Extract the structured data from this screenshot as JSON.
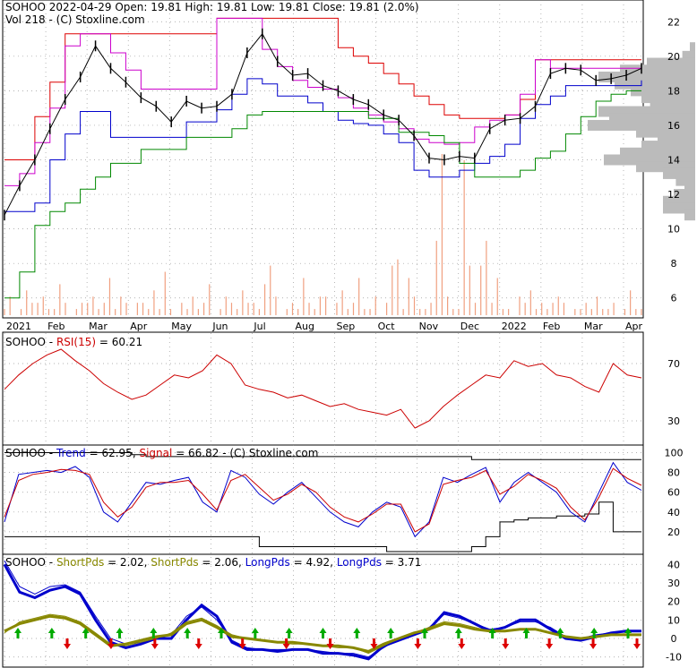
{
  "header": {
    "line1": "SOHOO  2022-04-29 Open: 19.81  High: 19.81  Low: 19.81  Close: 19.81 (2.0%)",
    "line2": "Vol 218   - (C) Stoxline.com"
  },
  "colors": {
    "price": "#000000",
    "upper_band": "#dd0000",
    "mid_band": "#cc00cc",
    "lower_band": "#0000cc",
    "low_band": "#008800",
    "volume": "#f0a080",
    "volume_profile": "#bbbbbb",
    "rsi": "#cc0000",
    "trend": "#0000cc",
    "signal": "#cc0000",
    "short_pds": "#888800",
    "long_pds": "#0000cc",
    "buy_arrow": "#00aa00",
    "sell_arrow": "#dd0000",
    "grid": "#999999"
  },
  "chart_data": [
    {
      "id": "price",
      "type": "line",
      "title": "SOHOO  2022-04-29 Open: 19.81  High: 19.81  Low: 19.81  Close: 19.81 (2.0%)",
      "y_ticks": [
        "22",
        "20",
        "18",
        "16",
        "14",
        "12",
        "10",
        "8",
        "6"
      ],
      "ylim": [
        5,
        23
      ],
      "x_ticks": [
        "2021",
        "Feb",
        "Mar",
        "Apr",
        "May",
        "Jun",
        "Jul",
        "Aug",
        "Sep",
        "Oct",
        "Nov",
        "Dec",
        "2022",
        "Feb",
        "Mar",
        "Apr"
      ],
      "series": [
        {
          "values": [
            10.8,
            12.5,
            14.0,
            15.8,
            17.5,
            18.8,
            20.6,
            19.3,
            18.5,
            17.6,
            17.1,
            16.2,
            17.4,
            17.0,
            17.1,
            17.8,
            20.2,
            21.3,
            19.7,
            18.9,
            19.0,
            18.3,
            18.0,
            17.5,
            17.2,
            16.6,
            16.3,
            15.4,
            14.1,
            14.0,
            14.2,
            14.1,
            15.8,
            16.3,
            16.4,
            17.1,
            19.0,
            19.3,
            19.2,
            18.6,
            18.7,
            18.9,
            19.3
          ]
        }
      ],
      "bands": {
        "upper": [
          14.0,
          14.0,
          16.5,
          18.5,
          21.3,
          21.3,
          21.3,
          21.3,
          21.3,
          21.3,
          21.3,
          21.3,
          21.3,
          21.3,
          22.2,
          22.2,
          22.2,
          22.2,
          22.2,
          22.2,
          22.2,
          22.2,
          20.5,
          20.0,
          19.6,
          19.0,
          18.4,
          17.7,
          17.2,
          16.6,
          16.4,
          16.4,
          16.4,
          16.6,
          17.5,
          19.8,
          19.8,
          19.8,
          19.8,
          19.8,
          19.8,
          19.8,
          19.8
        ],
        "mid": [
          12.5,
          13.2,
          15.0,
          17.0,
          20.6,
          21.3,
          21.3,
          20.2,
          19.2,
          18.1,
          18.1,
          18.1,
          18.1,
          18.1,
          22.2,
          22.2,
          22.2,
          20.4,
          19.4,
          18.6,
          18.2,
          18.1,
          17.6,
          17.0,
          16.6,
          16.2,
          15.8,
          15.2,
          15.0,
          14.9,
          15.0,
          15.9,
          16.3,
          16.6,
          17.8,
          19.8,
          19.3,
          19.3,
          19.3,
          19.3,
          19.3,
          19.3,
          19.3
        ],
        "lower": [
          11.0,
          11.0,
          11.5,
          14.0,
          15.5,
          16.8,
          16.8,
          15.3,
          15.3,
          15.3,
          15.3,
          15.3,
          16.2,
          16.2,
          16.9,
          17.8,
          18.7,
          18.4,
          17.7,
          17.7,
          17.3,
          16.8,
          16.3,
          16.1,
          16.0,
          15.5,
          15.0,
          13.4,
          13.0,
          13.0,
          13.4,
          13.8,
          14.2,
          14.9,
          16.4,
          17.2,
          17.7,
          18.3,
          18.3,
          18.3,
          18.3,
          18.3,
          18.6
        ],
        "low": [
          6.0,
          7.5,
          10.2,
          11.0,
          11.5,
          12.3,
          13.0,
          13.8,
          13.8,
          14.6,
          14.6,
          14.6,
          15.3,
          15.3,
          15.3,
          15.8,
          16.6,
          16.8,
          16.8,
          16.8,
          16.8,
          16.8,
          16.8,
          16.8,
          16.4,
          16.4,
          15.6,
          15.6,
          15.4,
          15.0,
          13.8,
          13.0,
          13.0,
          13.0,
          13.4,
          14.1,
          14.5,
          15.5,
          16.5,
          17.4,
          17.8,
          18.0,
          18.0
        ]
      },
      "volume": [
        1,
        3,
        0,
        1,
        4,
        2,
        2,
        3,
        1,
        1,
        5,
        2,
        0,
        1,
        2,
        2,
        3,
        1,
        2,
        6,
        1,
        3,
        2,
        0,
        2,
        2,
        1,
        4,
        1,
        7,
        1,
        0,
        2,
        1,
        3,
        1,
        2,
        5,
        0,
        1,
        3,
        2,
        1,
        4,
        2,
        2,
        1,
        5,
        8,
        3,
        0,
        1,
        2,
        1,
        6,
        2,
        1,
        3,
        3,
        0,
        2,
        4,
        1,
        2,
        6,
        1,
        1,
        3,
        0,
        2,
        8,
        9,
        1,
        6,
        3,
        1,
        1,
        2,
        12,
        26,
        3,
        1,
        1,
        25,
        8,
        2,
        8,
        12,
        2,
        6,
        1,
        1,
        0,
        3,
        2,
        4,
        1,
        2,
        1,
        2,
        3,
        2,
        0,
        1,
        1,
        2,
        1,
        3,
        1,
        1,
        2,
        0,
        1,
        4,
        1,
        1
      ],
      "volume_profile": [
        {
          "price": 20.5,
          "weight": 0.05
        },
        {
          "price": 20.0,
          "weight": 0.12
        },
        {
          "price": 19.6,
          "weight": 0.45
        },
        {
          "price": 19.2,
          "weight": 0.7
        },
        {
          "price": 18.8,
          "weight": 0.9
        },
        {
          "price": 18.4,
          "weight": 0.75
        },
        {
          "price": 18.0,
          "weight": 0.6
        },
        {
          "price": 17.6,
          "weight": 0.5
        },
        {
          "price": 17.2,
          "weight": 0.42
        },
        {
          "price": 16.8,
          "weight": 0.9
        },
        {
          "price": 16.4,
          "weight": 0.8
        },
        {
          "price": 16.0,
          "weight": 1.0
        },
        {
          "price": 15.6,
          "weight": 0.55
        },
        {
          "price": 15.2,
          "weight": 0.35
        },
        {
          "price": 14.8,
          "weight": 0.5
        },
        {
          "price": 14.4,
          "weight": 0.7
        },
        {
          "price": 14.0,
          "weight": 0.85
        },
        {
          "price": 13.6,
          "weight": 0.55
        },
        {
          "price": 13.2,
          "weight": 0.3
        },
        {
          "price": 12.8,
          "weight": 0.18
        },
        {
          "price": 12.4,
          "weight": 0.1
        },
        {
          "price": 12.0,
          "weight": 0.2
        },
        {
          "price": 11.6,
          "weight": 0.3
        },
        {
          "price": 11.2,
          "weight": 0.3
        },
        {
          "price": 10.8,
          "weight": 0.1
        }
      ]
    },
    {
      "id": "rsi",
      "type": "line",
      "title_prefix": "SOHOO - ",
      "series_label": "RSI(15)",
      "value_text": " = 60.21",
      "y_ticks": [
        "70",
        "30"
      ],
      "ylim": [
        15,
        90
      ],
      "series": [
        {
          "name": "RSI(15)",
          "values": [
            52,
            62,
            70,
            76,
            80,
            72,
            65,
            56,
            50,
            45,
            48,
            55,
            62,
            60,
            65,
            76,
            70,
            55,
            52,
            50,
            46,
            48,
            44,
            40,
            42,
            38,
            36,
            34,
            38,
            25,
            30,
            40,
            48,
            55,
            62,
            60,
            72,
            68,
            70,
            62,
            60,
            54,
            50,
            70,
            62,
            60
          ]
        }
      ]
    },
    {
      "id": "trend",
      "type": "line",
      "title_prefix": "SOHOO  - ",
      "series_label_1": "Trend",
      "value_text_1": " = 62.95, ",
      "series_label_2": "Signal",
      "value_text_2": " = 66.82",
      "suffix": "  - (C) Stoxline.com",
      "y_ticks": [
        "100",
        "80",
        "60",
        "40",
        "20"
      ],
      "ylim": [
        0,
        105
      ],
      "series": [
        {
          "name": "Trend",
          "values": [
            30,
            78,
            80,
            82,
            80,
            86,
            75,
            40,
            30,
            50,
            70,
            68,
            72,
            75,
            50,
            40,
            82,
            75,
            58,
            48,
            60,
            70,
            55,
            40,
            30,
            25,
            40,
            50,
            45,
            15,
            30,
            75,
            70,
            78,
            85,
            50,
            70,
            80,
            70,
            60,
            40,
            30,
            60,
            90,
            70,
            62
          ]
        },
        {
          "name": "Signal",
          "values": [
            35,
            72,
            78,
            80,
            83,
            82,
            78,
            50,
            35,
            45,
            65,
            70,
            70,
            72,
            58,
            42,
            72,
            78,
            65,
            52,
            58,
            68,
            60,
            45,
            35,
            30,
            38,
            48,
            48,
            20,
            28,
            68,
            72,
            75,
            82,
            58,
            66,
            78,
            72,
            64,
            45,
            32,
            55,
            84,
            74,
            67
          ]
        },
        {
          "name": "upper",
          "values": [
            100,
            100,
            100,
            100,
            100,
            100,
            100,
            100,
            100,
            98,
            96,
            96,
            96,
            96,
            96,
            96,
            96,
            96,
            96,
            96,
            96,
            96,
            96,
            96,
            96,
            96,
            96,
            96,
            96,
            96,
            96,
            96,
            96,
            93,
            93,
            93,
            93,
            93,
            93,
            93,
            93,
            93,
            93,
            93,
            93,
            93
          ]
        },
        {
          "name": "lower",
          "values": [
            15,
            15,
            15,
            15,
            15,
            15,
            15,
            15,
            15,
            15,
            15,
            15,
            15,
            15,
            15,
            15,
            15,
            15,
            5,
            5,
            5,
            5,
            5,
            5,
            5,
            5,
            5,
            0,
            0,
            0,
            0,
            0,
            0,
            5,
            15,
            30,
            32,
            34,
            34,
            36,
            36,
            38,
            50,
            20,
            20,
            20
          ]
        }
      ]
    },
    {
      "id": "pds",
      "type": "line",
      "title_prefix": "SOHOO  - ",
      "label_1": "ShortPds",
      "value_1": " = 2.02, ",
      "label_2": "ShortPds",
      "value_2": " = 2.06, ",
      "label_3": "LongPds",
      "value_3": " = 4.92, ",
      "label_4": "LongPds",
      "value_4": " = 3.71",
      "y_ticks": [
        "40",
        "30",
        "20",
        "10",
        "0",
        "-10"
      ],
      "ylim": [
        -14,
        44
      ],
      "series": [
        {
          "name": "LongPds",
          "values": [
            40,
            25,
            22,
            26,
            28,
            24,
            10,
            -2,
            -5,
            -3,
            0,
            0,
            10,
            18,
            12,
            -2,
            -6,
            -6,
            -7,
            -6,
            -6,
            -8,
            -8,
            -9,
            -11,
            -4,
            -1,
            2,
            5,
            14,
            12,
            8,
            4,
            6,
            10,
            10,
            5,
            0,
            -1,
            1,
            3,
            4,
            4
          ]
        },
        {
          "name": "LongPds",
          "values": [
            42,
            28,
            24,
            28,
            29,
            25,
            12,
            0,
            -3,
            -2,
            0,
            2,
            12,
            17,
            10,
            -1,
            -5,
            -6,
            -6,
            -6,
            -6,
            -7,
            -8,
            -8,
            -10,
            -5,
            0,
            2,
            6,
            13,
            11,
            8,
            5,
            6,
            9,
            9,
            6,
            1,
            0,
            2,
            3,
            4,
            4
          ]
        },
        {
          "name": "ShortPds",
          "values": [
            4,
            8,
            10,
            12,
            11,
            8,
            2,
            -4,
            -3,
            -1,
            1,
            2,
            8,
            10,
            6,
            1,
            0,
            -1,
            -2,
            -2,
            -3,
            -4,
            -4,
            -5,
            -7,
            -3,
            0,
            3,
            5,
            8,
            7,
            5,
            4,
            4,
            5,
            5,
            3,
            1,
            0,
            1,
            2,
            2,
            2
          ]
        },
        {
          "name": "ShortPds",
          "values": [
            3,
            9,
            11,
            13,
            12,
            9,
            3,
            -3,
            -4,
            -2,
            0,
            3,
            9,
            11,
            7,
            2,
            0,
            -1,
            -2,
            -3,
            -3,
            -4,
            -5,
            -5,
            -8,
            -4,
            0,
            3,
            6,
            9,
            8,
            6,
            4,
            4,
            5,
            5,
            3,
            1,
            0,
            1,
            2,
            2,
            2
          ]
        }
      ],
      "buy_signals": 19,
      "sell_signals": 14
    }
  ]
}
